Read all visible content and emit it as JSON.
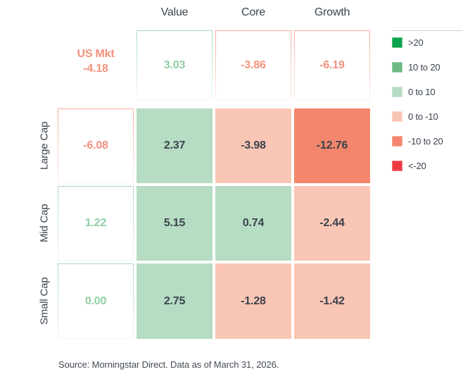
{
  "chart_data": {
    "type": "heatmap",
    "columns": [
      "Value",
      "Core",
      "Growth"
    ],
    "rows": [
      "Large Cap",
      "Mid Cap",
      "Small Cap"
    ],
    "values": [
      [
        2.37,
        -3.98,
        -12.76
      ],
      [
        5.15,
        0.74,
        -2.44
      ],
      [
        2.75,
        -1.28,
        -1.42
      ]
    ],
    "market_benchmark": {
      "label": "US Mkt",
      "value": -4.18
    },
    "style_benchmarks": {
      "Value": 3.03,
      "Core": -3.86,
      "Growth": -6.19
    },
    "cap_benchmarks": {
      "Large Cap": -6.08,
      "Mid Cap": 1.22,
      "Small Cap": 0.0
    },
    "legend_bins": [
      ">20",
      "10 to 20",
      "0 to 10",
      "0 to -10",
      "-10 to 20",
      "<-20"
    ],
    "legend_position": "top-right",
    "source": "Source: Morningstar Direct. Data as of March 31, 2026."
  },
  "columns": [
    {
      "label": "Value"
    },
    {
      "label": "Core"
    },
    {
      "label": "Growth"
    }
  ],
  "benchmark": {
    "label": "US Mkt",
    "value": "-4.18",
    "cells": [
      "3.03",
      "-3.86",
      "-6.19"
    ]
  },
  "rows": [
    {
      "label": "Large Cap",
      "benchmark": "-6.08",
      "cells": [
        "2.37",
        "-3.98",
        "-12.76"
      ]
    },
    {
      "label": "Mid Cap",
      "benchmark": "1.22",
      "cells": [
        "5.15",
        "0.74",
        "-2.44"
      ]
    },
    {
      "label": "Small Cap",
      "benchmark": "0.00",
      "cells": [
        "2.75",
        "-1.28",
        "-1.42"
      ]
    }
  ],
  "legend": {
    "items": [
      {
        "label": ">20",
        "color": "#0da24c"
      },
      {
        "label": "10 to 20",
        "color": "#6cbc84"
      },
      {
        "label": "0 to 10",
        "color": "#b6dcc3"
      },
      {
        "label": "0 to -10",
        "color": "#f9c5b4"
      },
      {
        "label": "-10 to 20",
        "color": "#f3866c"
      },
      {
        "label": "<-20",
        "color": "#ee3a41"
      }
    ]
  },
  "source": "Source: Morningstar Direct. Data as of March 31, 2026.",
  "palette": {
    "ink": "#3a434d",
    "green-dark": "#0da24c",
    "green-mid": "#6cbc84",
    "green-light": "#b6dcc3",
    "salmon-light": "#f9c5b4",
    "salmon-mid": "#f3866c",
    "red": "#ee3a41",
    "green-text": "#8ecfa4",
    "salmon-text": "#f4917e",
    "green-border": "#a9d9ba",
    "salmon-border": "#f7aa97"
  }
}
